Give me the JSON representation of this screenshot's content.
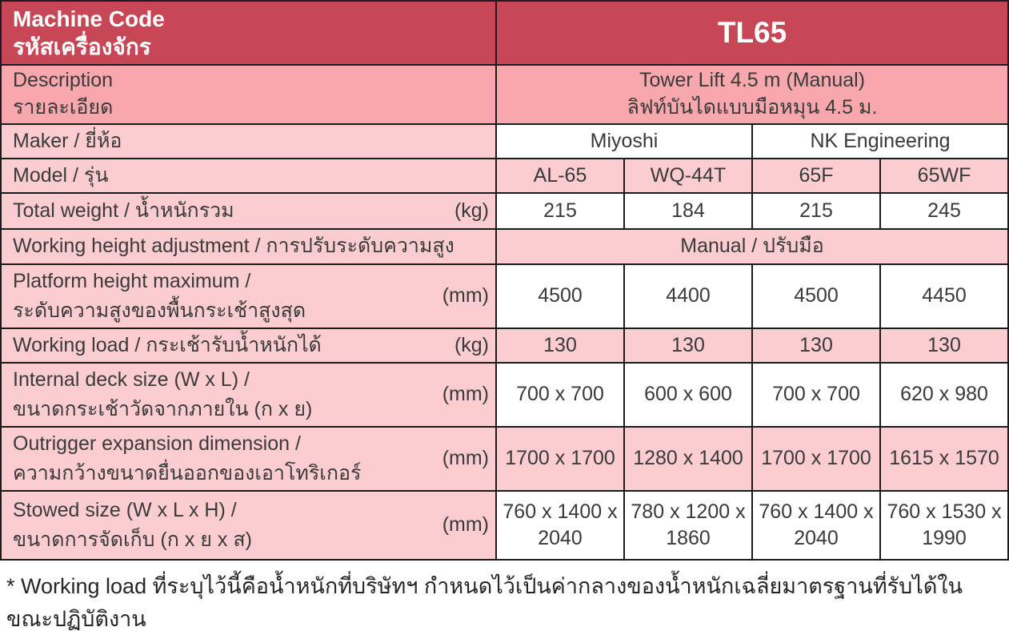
{
  "colors": {
    "header-red": "#c84757",
    "pink-dark": "#f8a8ad",
    "pink-light": "#fbcdd1",
    "border": "#1b1b1b",
    "text": "#3a3a3a",
    "text-white": "#ffffff"
  },
  "header": {
    "machine_code_en": "Machine Code",
    "machine_code_th": "รหัสเครื่องจักร",
    "machine_code_value": "TL65"
  },
  "description": {
    "label_en": "Description",
    "label_th": "รายละเอียด",
    "value_en": "Tower Lift 4.5 m (Manual)",
    "value_th": "ลิฟท์บันไดแบบมือหมุน 4.5 ม."
  },
  "maker": {
    "label": "Maker / ยี่ห้อ",
    "values": [
      "Miyoshi",
      "NK Engineering"
    ]
  },
  "model": {
    "label": "Model / รุ่น",
    "values": [
      "AL-65",
      "WQ-44T",
      "65F",
      "65WF"
    ]
  },
  "specs": {
    "total_weight": {
      "label": "Total weight / น้ำหนักรวม",
      "unit": "(kg)",
      "values": [
        "215",
        "184",
        "215",
        "245"
      ]
    },
    "working_height_adjustment": {
      "label": "Working height adjustment / การปรับระดับความสูง",
      "value": "Manual / ปรับมือ"
    },
    "platform_height_maximum": {
      "label_line1": "Platform height maximum /",
      "label_line2": "ระดับความสูงของพื้นกระเช้าสูงสุด",
      "unit": "(mm)",
      "values": [
        "4500",
        "4400",
        "4500",
        "4450"
      ]
    },
    "working_load": {
      "label": "Working load / กระเช้ารับน้ำหนักได้",
      "unit": "(kg)",
      "values": [
        "130",
        "130",
        "130",
        "130"
      ]
    },
    "internal_deck_size": {
      "label_line1": "Internal deck size (W x L) /",
      "label_line2": "ขนาดกระเช้าวัดจากภายใน (ก x ย)",
      "unit": "(mm)",
      "values": [
        "700 x 700",
        "600 x 600",
        "700 x 700",
        "620 x 980"
      ]
    },
    "outrigger_expansion": {
      "label_line1": "Outrigger expansion dimension /",
      "label_line2": "ความกว้างขนาดยื่นออกของเอาโทริเกอร์",
      "unit": "(mm)",
      "values": [
        "1700 x 1700",
        "1280 x 1400",
        "1700 x 1700",
        "1615 x 1570"
      ]
    },
    "stowed_size": {
      "label_line1": "Stowed size (W x L x H) /",
      "label_line2": "ขนาดการจัดเก็บ (ก x ย x ส)",
      "unit": "(mm)",
      "values": [
        "760 x 1400 x 2040",
        "780 x 1200 x 1860",
        "760 x 1400 x 2040",
        "760 x 1530 x 1990"
      ]
    }
  },
  "footnote": "* Working load ที่ระบุไว้นี้คือน้ำหนักที่บริษัทฯ กำหนดไว้เป็นค่ากลางของน้ำหนักเฉลี่ยมาตรฐานที่รับได้ในขณะปฏิบัติงาน"
}
